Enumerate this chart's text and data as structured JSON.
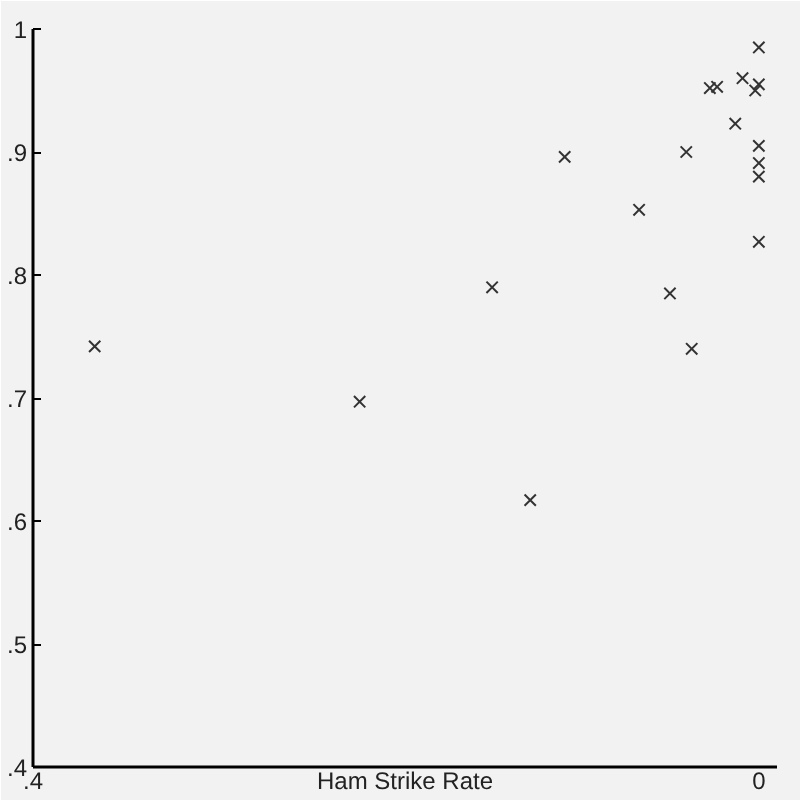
{
  "chart_data": {
    "type": "scatter",
    "xlabel": "Ham Strike Rate",
    "x": [
      0.366,
      0.22,
      0.107,
      0.04,
      0.066,
      0.147,
      0.049,
      0.037,
      0.126,
      0,
      0.013,
      0.027,
      0.023,
      0.009,
      0.002,
      0,
      0,
      0,
      0,
      0
    ],
    "values": [
      0.742,
      0.697,
      0.896,
      0.9,
      0.853,
      0.79,
      0.785,
      0.74,
      0.617,
      0.827,
      0.923,
      0.952,
      0.953,
      0.96,
      0.95,
      0.955,
      0.985,
      0.905,
      0.891,
      0.88
    ],
    "color": "#333333",
    "marker": "cross",
    "xlim": [
      0.4,
      -0.01
    ],
    "xticks": [
      {
        "value": 0.4,
        "label": ".4"
      },
      0
    ],
    "ylim": [
      0.4,
      1.0
    ],
    "yticks": [
      {
        "value": 0.4,
        "label": ".4"
      },
      {
        "value": 0.5,
        "label": ".5"
      },
      {
        "value": 0.6,
        "label": ".6"
      },
      {
        "value": 0.7,
        "label": ".7"
      },
      {
        "value": 0.8,
        "label": ".8"
      },
      {
        "value": 0.9,
        "label": ".9"
      },
      1
    ]
  }
}
